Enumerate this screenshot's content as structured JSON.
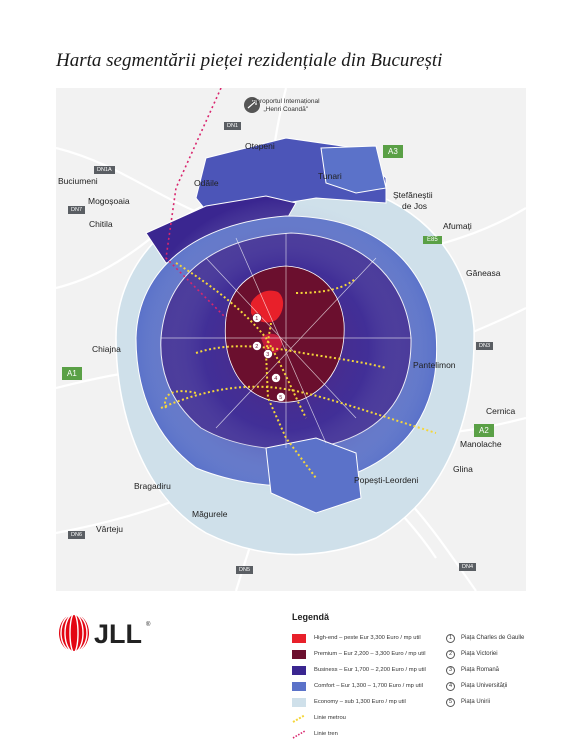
{
  "title": "Harta segmentării pieței rezidențiale din București",
  "colors": {
    "high_end": "#e8202a",
    "premium": "#6b0f2e",
    "business": "#3a2690",
    "comfort": "#5b72c9",
    "economy": "#cfe0ea",
    "metro": "#f5d63a",
    "train": "#d9266e"
  },
  "airport": {
    "line1": "Aeroportul Internațional",
    "line2": "„Henri Coandă\""
  },
  "road_labels": {
    "dn1": "DN1",
    "dn1a": "DN1A",
    "dn7": "DN7",
    "a3": "A3",
    "e85": "E85",
    "dn3": "DN3",
    "a1": "A1",
    "a2": "A2",
    "dn6": "DN6",
    "dn5": "DN5",
    "dn4": "DN4"
  },
  "places": {
    "otopeni": "Otopeni",
    "tunari": "Tunari",
    "buciumeni": "Buciumeni",
    "mogosoaia": "Mogoșoaia",
    "odaile": "Odăile",
    "chitila": "Chitila",
    "stefanestii": "Ștefăneștii",
    "de_jos": "de Jos",
    "afumati": "Afumați",
    "ganeasa": "Găneasa",
    "chiajna": "Chiajna",
    "pantelimon": "Pantelimon",
    "cernica": "Cernica",
    "manolache": "Manolache",
    "glina": "Glina",
    "popesti": "Popești-Leordeni",
    "bragadiru": "Bragadiru",
    "magurele": "Măgurele",
    "varteju": "Vârteju"
  },
  "logo_text": "JLL",
  "legend": {
    "title": "Legendă",
    "items": [
      {
        "label": "High-end – peste Eur 3,300 Euro / mp util",
        "color": "#e8202a"
      },
      {
        "label": "Premium – Eur 2,200 – 3,300 Euro / mp util",
        "color": "#6b0f2e"
      },
      {
        "label": "Business – Eur 1,700 – 2,200 Euro / mp util",
        "color": "#3a2690"
      },
      {
        "label": "Comfort – Eur 1,300 – 1,700 Euro / mp util",
        "color": "#5b72c9"
      },
      {
        "label": "Economy – sub 1,300 Euro / mp util",
        "color": "#cfe0ea"
      }
    ],
    "metro": "Linie metrou",
    "train": "Linie tren",
    "stations": [
      {
        "num": "1",
        "name": "Piața Charles de Gaulle"
      },
      {
        "num": "2",
        "name": "Piața Victoriei"
      },
      {
        "num": "3",
        "name": "Piața Romană"
      },
      {
        "num": "4",
        "name": "Piața Universității"
      },
      {
        "num": "5",
        "name": "Piața Unirii"
      }
    ]
  }
}
